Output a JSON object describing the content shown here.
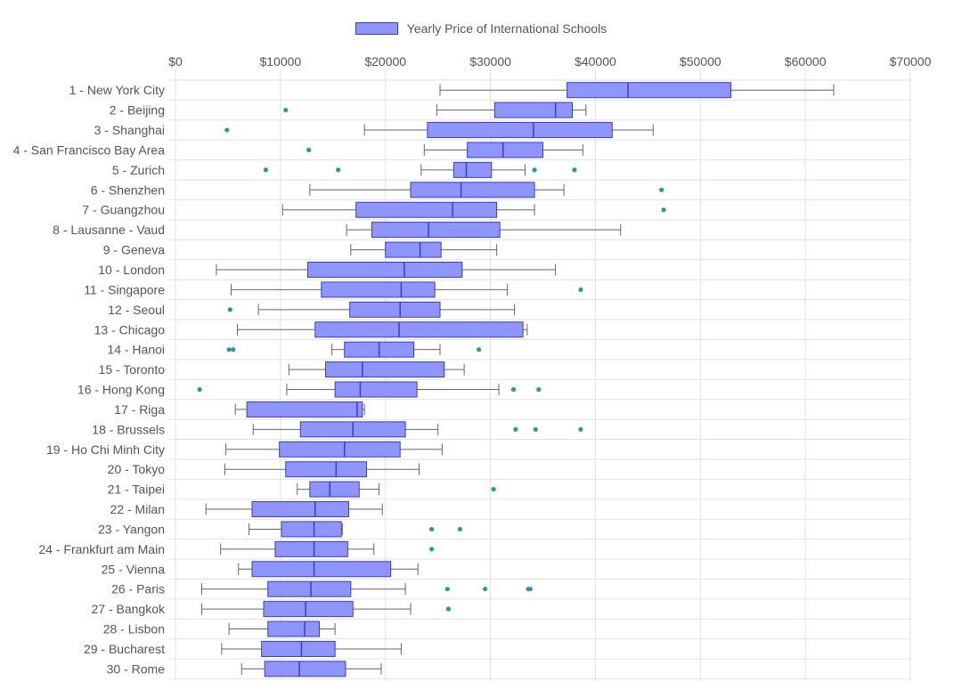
{
  "chart_data": {
    "type": "boxplot",
    "orientation": "horizontal",
    "legend": {
      "label": "Yearly Price of International Schools",
      "position": "top"
    },
    "xaxis": {
      "position": "top",
      "min": 0,
      "max": 70000,
      "ticks": [
        "$0",
        "$10000",
        "$20000",
        "$30000",
        "$40000",
        "$50000",
        "$60000",
        "$70000"
      ],
      "tick_values": [
        0,
        10000,
        20000,
        30000,
        40000,
        50000,
        60000,
        70000
      ]
    },
    "grid": true,
    "colors": {
      "box_fill": "#8f95ff",
      "box_stroke": "#3a3acf",
      "whisker": "#666666",
      "outlier": "#2a9a96",
      "grid": "#e2e2e2"
    },
    "categories": [
      "1 - New York City",
      "2 - Beijing",
      "3 - Shanghai",
      "4 - San Francisco Bay Area",
      "5 - Zurich",
      "6 - Shenzhen",
      "7 - Guangzhou",
      "8 - Lausanne - Vaud",
      "9 - Geneva",
      "10 - London",
      "11 - Singapore",
      "12 - Seoul",
      "13 - Chicago",
      "14 - Hanoi",
      "15 - Toronto",
      "16 - Hong Kong",
      "17 - Riga",
      "18 - Brussels",
      "19 - Ho Chi Minh City",
      "20 - Tokyo",
      "21 - Taipei",
      "22 - Milan",
      "23 - Yangon",
      "24 - Frankfurt am Main",
      "25 - Vienna",
      "26 - Paris",
      "27 - Bangkok",
      "28 - Lisbon",
      "29 - Bucharest",
      "30 - Rome"
    ],
    "boxes": [
      {
        "min": 25200,
        "q1": 37300,
        "median": 43100,
        "q3": 52900,
        "max": 62700,
        "outliers": []
      },
      {
        "min": 24900,
        "q1": 30400,
        "median": 36200,
        "q3": 37800,
        "max": 39100,
        "outliers": [
          10500
        ]
      },
      {
        "min": 18000,
        "q1": 24000,
        "median": 34100,
        "q3": 41600,
        "max": 45500,
        "outliers": [
          4900
        ]
      },
      {
        "min": 23700,
        "q1": 27800,
        "median": 31200,
        "q3": 35000,
        "max": 38800,
        "outliers": [
          12700
        ]
      },
      {
        "min": 23400,
        "q1": 26500,
        "median": 27700,
        "q3": 30100,
        "max": 33300,
        "outliers": [
          8600,
          15500,
          34200,
          38000
        ]
      },
      {
        "min": 12800,
        "q1": 22400,
        "median": 27200,
        "q3": 34200,
        "max": 37000,
        "outliers": [
          46300
        ]
      },
      {
        "min": 10200,
        "q1": 17200,
        "median": 26400,
        "q3": 30600,
        "max": 34200,
        "outliers": [
          46500
        ]
      },
      {
        "min": 16300,
        "q1": 18700,
        "median": 24100,
        "q3": 30900,
        "max": 42400,
        "outliers": []
      },
      {
        "min": 16700,
        "q1": 20000,
        "median": 23300,
        "q3": 25300,
        "max": 30600,
        "outliers": []
      },
      {
        "min": 3900,
        "q1": 12600,
        "median": 21800,
        "q3": 27300,
        "max": 36200,
        "outliers": []
      },
      {
        "min": 5300,
        "q1": 13900,
        "median": 21500,
        "q3": 24700,
        "max": 31600,
        "outliers": [
          38600
        ]
      },
      {
        "min": 7900,
        "q1": 16600,
        "median": 21400,
        "q3": 25200,
        "max": 32300,
        "outliers": [
          5200
        ]
      },
      {
        "min": 5900,
        "q1": 13300,
        "median": 21300,
        "q3": 33100,
        "max": 33500,
        "outliers": []
      },
      {
        "min": 14900,
        "q1": 16100,
        "median": 19400,
        "q3": 22700,
        "max": 25200,
        "outliers": [
          5100,
          5500,
          28900
        ]
      },
      {
        "min": 10800,
        "q1": 14300,
        "median": 17800,
        "q3": 25600,
        "max": 27500,
        "outliers": []
      },
      {
        "min": 10600,
        "q1": 15200,
        "median": 17600,
        "q3": 23000,
        "max": 30800,
        "outliers": [
          2300,
          32200,
          34600
        ]
      },
      {
        "min": 5700,
        "q1": 6800,
        "median": 17300,
        "q3": 17800,
        "max": 18000,
        "outliers": []
      },
      {
        "min": 7400,
        "q1": 11900,
        "median": 16900,
        "q3": 21900,
        "max": 25000,
        "outliers": [
          32400,
          34300,
          38600
        ]
      },
      {
        "min": 4800,
        "q1": 9900,
        "median": 16100,
        "q3": 21400,
        "max": 25400,
        "outliers": []
      },
      {
        "min": 4700,
        "q1": 10500,
        "median": 15300,
        "q3": 18200,
        "max": 23200,
        "outliers": []
      },
      {
        "min": 11600,
        "q1": 12800,
        "median": 14700,
        "q3": 17500,
        "max": 19400,
        "outliers": [
          30300
        ]
      },
      {
        "min": 2900,
        "q1": 7300,
        "median": 13300,
        "q3": 16500,
        "max": 19700,
        "outliers": []
      },
      {
        "min": 7000,
        "q1": 10100,
        "median": 13200,
        "q3": 15800,
        "max": 15900,
        "outliers": [
          24400,
          27100
        ]
      },
      {
        "min": 4300,
        "q1": 9500,
        "median": 13200,
        "q3": 16400,
        "max": 18900,
        "outliers": [
          24400
        ]
      },
      {
        "min": 6000,
        "q1": 7300,
        "median": 13200,
        "q3": 20500,
        "max": 23100,
        "outliers": []
      },
      {
        "min": 2500,
        "q1": 8800,
        "median": 12900,
        "q3": 16700,
        "max": 21900,
        "outliers": [
          25900,
          29500,
          33800,
          33600
        ]
      },
      {
        "min": 2500,
        "q1": 8400,
        "median": 12400,
        "q3": 16900,
        "max": 22400,
        "outliers": [
          26000
        ]
      },
      {
        "min": 5100,
        "q1": 8800,
        "median": 12300,
        "q3": 13700,
        "max": 15200,
        "outliers": []
      },
      {
        "min": 4400,
        "q1": 8200,
        "median": 12000,
        "q3": 15200,
        "max": 21500,
        "outliers": []
      },
      {
        "min": 6300,
        "q1": 8500,
        "median": 11800,
        "q3": 16200,
        "max": 19600,
        "outliers": []
      }
    ]
  }
}
